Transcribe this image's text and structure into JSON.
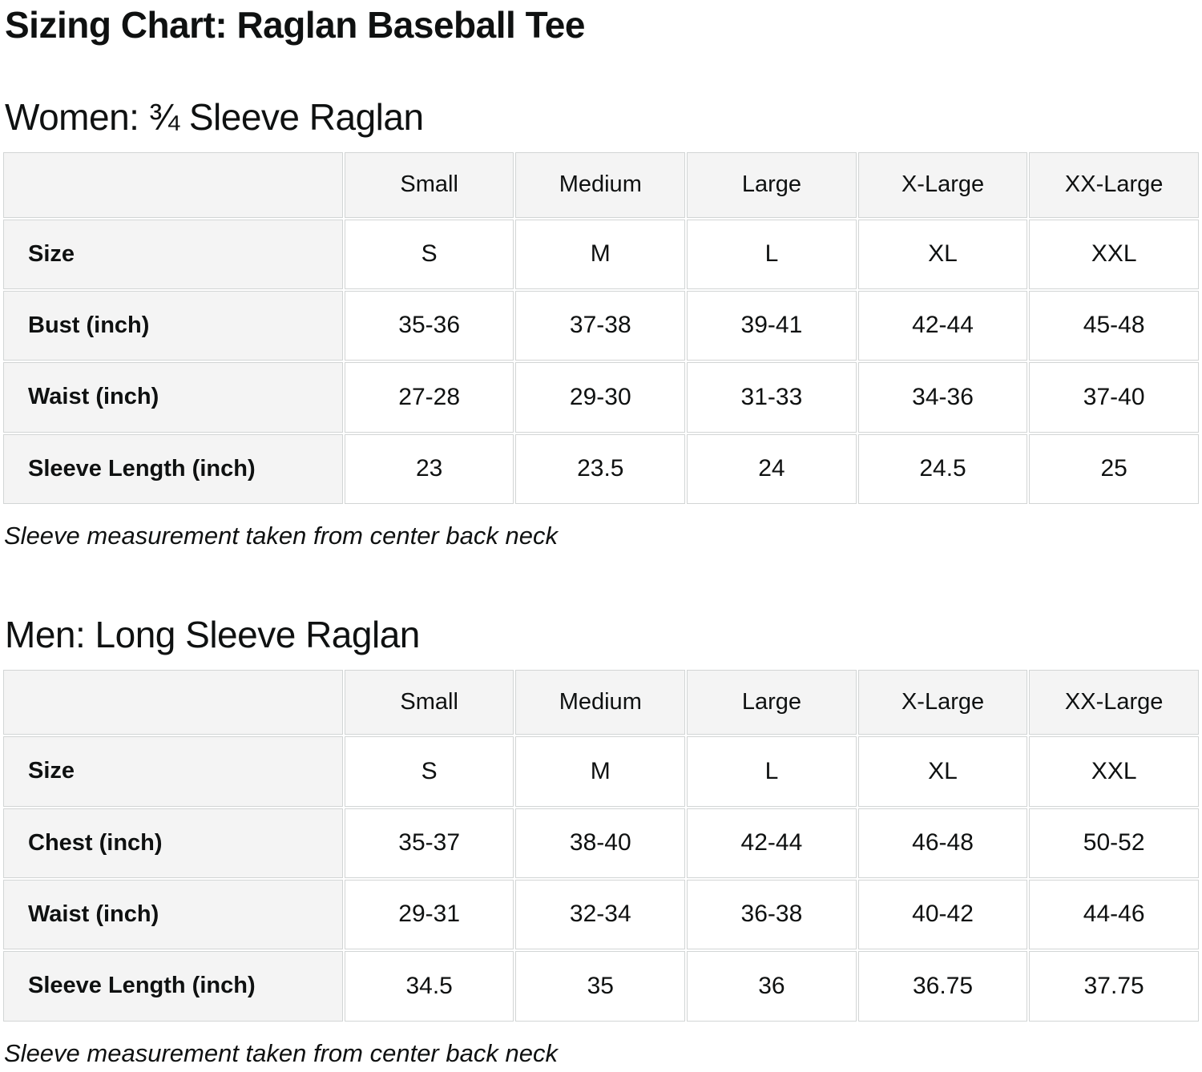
{
  "page": {
    "title": "Sizing Chart: Raglan Baseball Tee"
  },
  "colors": {
    "header_bg": "#f4f4f4",
    "cell_bg": "#ffffff",
    "border": "#d2d5d5",
    "text": "#0f1111"
  },
  "sections": [
    {
      "heading": "Women: ¾ Sleeve Raglan",
      "note": "Sleeve measurement taken from center back neck",
      "table": {
        "column_headers": [
          "",
          "Small",
          "Medium",
          "Large",
          "X-Large",
          "XX-Large"
        ],
        "rows": [
          {
            "label": "Size",
            "values": [
              "S",
              "M",
              "L",
              "XL",
              "XXL"
            ]
          },
          {
            "label": "Bust (inch)",
            "values": [
              "35-36",
              "37-38",
              "39-41",
              "42-44",
              "45-48"
            ]
          },
          {
            "label": "Waist (inch)",
            "values": [
              "27-28",
              "29-30",
              "31-33",
              "34-36",
              "37-40"
            ]
          },
          {
            "label": "Sleeve Length (inch)",
            "values": [
              "23",
              "23.5",
              "24",
              "24.5",
              "25"
            ]
          }
        ]
      }
    },
    {
      "heading": "Men: Long Sleeve Raglan",
      "note": "Sleeve measurement taken from center back neck",
      "table": {
        "column_headers": [
          "",
          "Small",
          "Medium",
          "Large",
          "X-Large",
          "XX-Large"
        ],
        "rows": [
          {
            "label": "Size",
            "values": [
              "S",
              "M",
              "L",
              "XL",
              "XXL"
            ]
          },
          {
            "label": "Chest (inch)",
            "values": [
              "35-37",
              "38-40",
              "42-44",
              "46-48",
              "50-52"
            ]
          },
          {
            "label": "Waist (inch)",
            "values": [
              "29-31",
              "32-34",
              "36-38",
              "40-42",
              "44-46"
            ]
          },
          {
            "label": "Sleeve Length (inch)",
            "values": [
              "34.5",
              "35",
              "36",
              "36.75",
              "37.75"
            ]
          }
        ]
      }
    }
  ]
}
